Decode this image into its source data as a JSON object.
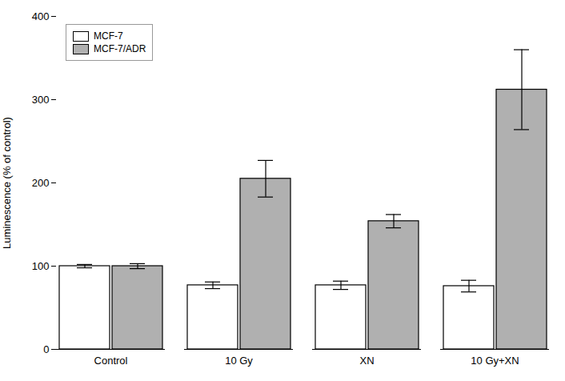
{
  "chart_data": {
    "type": "bar",
    "categories": [
      "Control",
      "10 Gy",
      "XN",
      "10 Gy+XN"
    ],
    "series": [
      {
        "name": "MCF-7",
        "color": "#ffffff",
        "values": [
          100,
          77,
          77,
          76
        ],
        "errors": [
          2,
          4,
          5,
          7
        ]
      },
      {
        "name": "MCF-7/ADR",
        "color": "#b0b0b0",
        "values": [
          100,
          205,
          154,
          312
        ],
        "errors": [
          3,
          22,
          8,
          48
        ]
      }
    ],
    "ylabel": "Luminescence (% of control)",
    "ylim": [
      0,
      400
    ],
    "yticks": [
      0,
      100,
      200,
      300,
      400
    ],
    "grid": false,
    "legend": "upper left"
  }
}
